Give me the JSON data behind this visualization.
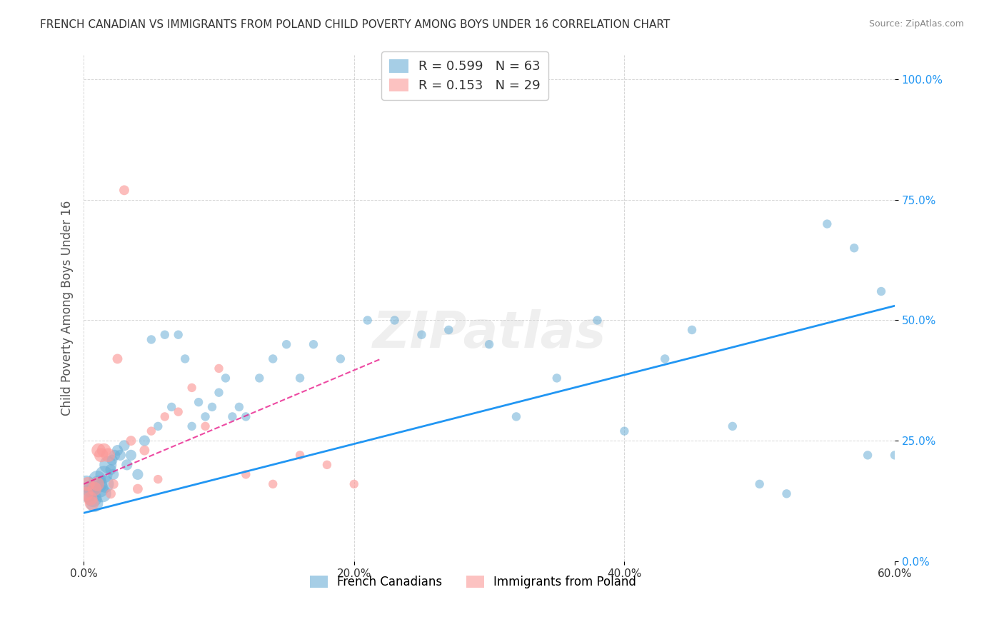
{
  "title": "FRENCH CANADIAN VS IMMIGRANTS FROM POLAND CHILD POVERTY AMONG BOYS UNDER 16 CORRELATION CHART",
  "source": "Source: ZipAtlas.com",
  "ylabel": "Child Poverty Among Boys Under 16",
  "xlabel_ticks": [
    "0.0%",
    "20.0%",
    "40.0%",
    "60.0%"
  ],
  "xlabel_vals": [
    0,
    20,
    40,
    60
  ],
  "ylabel_ticks": [
    "0.0%",
    "25.0%",
    "50.0%",
    "75.0%",
    "100.0%"
  ],
  "ylabel_vals": [
    0,
    25,
    50,
    75,
    100
  ],
  "xlim": [
    0,
    60
  ],
  "ylim": [
    0,
    105
  ],
  "legend_label1": "French Canadians",
  "legend_label2": "Immigrants from Poland",
  "R1": "0.599",
  "N1": "63",
  "R2": "0.153",
  "N2": "29",
  "color_blue": "#6baed6",
  "color_pink": "#fb9a99",
  "watermark": "ZIPatlas",
  "blue_x": [
    0.2,
    0.3,
    0.5,
    0.7,
    0.8,
    1.0,
    1.1,
    1.2,
    1.4,
    1.5,
    1.6,
    1.8,
    2.0,
    2.1,
    2.2,
    2.3,
    2.5,
    2.7,
    3.0,
    3.2,
    3.5,
    4.0,
    4.5,
    5.0,
    5.5,
    6.0,
    6.5,
    7.0,
    7.5,
    8.0,
    8.5,
    9.0,
    9.5,
    10.0,
    10.5,
    11.0,
    11.5,
    12.0,
    13.0,
    14.0,
    15.0,
    16.0,
    17.0,
    19.0,
    21.0,
    23.0,
    25.0,
    27.0,
    30.0,
    32.0,
    35.0,
    38.0,
    40.0,
    43.0,
    45.0,
    48.0,
    50.0,
    52.0,
    55.0,
    57.0,
    58.0,
    59.0,
    60.0
  ],
  "blue_y": [
    16,
    14,
    15,
    13,
    12,
    17,
    16,
    15,
    14,
    18,
    16,
    20,
    19,
    21,
    18,
    22,
    23,
    22,
    24,
    20,
    22,
    18,
    25,
    46,
    28,
    47,
    32,
    47,
    42,
    28,
    33,
    30,
    32,
    35,
    38,
    30,
    32,
    30,
    38,
    42,
    45,
    38,
    45,
    42,
    50,
    50,
    47,
    48,
    45,
    30,
    38,
    50,
    27,
    42,
    48,
    28,
    16,
    14,
    70,
    65,
    22,
    56,
    22
  ],
  "pink_x": [
    0.2,
    0.3,
    0.5,
    0.6,
    0.8,
    1.0,
    1.1,
    1.3,
    1.5,
    1.8,
    2.0,
    2.2,
    2.5,
    3.0,
    3.5,
    4.0,
    4.5,
    5.0,
    5.5,
    6.0,
    7.0,
    8.0,
    9.0,
    10.0,
    12.0,
    14.0,
    16.0,
    18.0,
    20.0
  ],
  "pink_y": [
    14,
    16,
    13,
    12,
    15,
    16,
    23,
    22,
    23,
    22,
    14,
    16,
    42,
    77,
    25,
    15,
    23,
    27,
    17,
    30,
    31,
    36,
    28,
    40,
    18,
    16,
    22,
    20,
    16
  ],
  "blue_line_x": [
    0,
    60
  ],
  "blue_line_y": [
    10,
    53
  ],
  "pink_line_x": [
    0,
    22
  ],
  "pink_line_y": [
    16,
    42
  ],
  "figsize": [
    14.06,
    8.92
  ],
  "dpi": 100
}
